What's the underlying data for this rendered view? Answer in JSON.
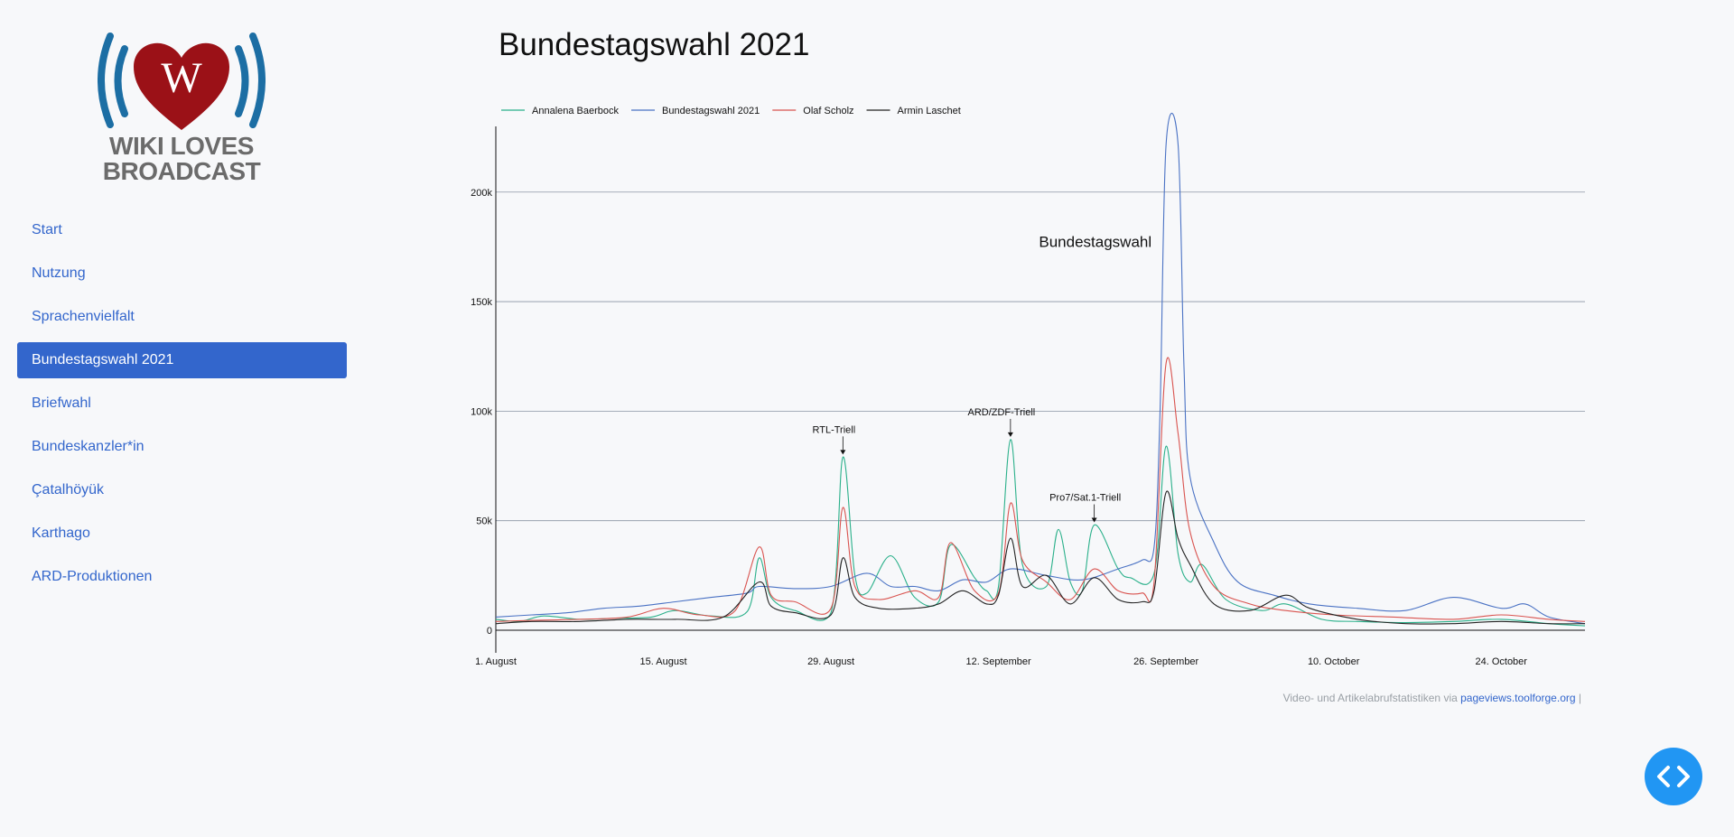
{
  "logo": {
    "line1": "WIKI LOVES",
    "line2": "BROADCAST",
    "letter": "W"
  },
  "nav": {
    "items": [
      {
        "label": "Start",
        "active": false
      },
      {
        "label": "Nutzung",
        "active": false
      },
      {
        "label": "Sprachenvielfalt",
        "active": false
      },
      {
        "label": "Bundestagswahl 2021",
        "active": true
      },
      {
        "label": "Briefwahl",
        "active": false
      },
      {
        "label": "Bundeskanzler*in",
        "active": false
      },
      {
        "label": "Çatalhöyük",
        "active": false
      },
      {
        "label": "Karthago",
        "active": false
      },
      {
        "label": "ARD-Produktionen",
        "active": false
      }
    ]
  },
  "page": {
    "title": "Bundestagswahl 2021"
  },
  "credit": {
    "text": "Video- und Artikelabrufstatistiken via ",
    "link": "pageviews.toolforge.org",
    "suffix": " |"
  },
  "chart_data": {
    "type": "line",
    "title": "",
    "xlabel": "",
    "ylabel": "",
    "xlim": [
      "2021-08-01",
      "2021-10-31"
    ],
    "ylim": [
      0,
      230000
    ],
    "y_ticks": [
      0,
      50000,
      100000,
      150000,
      200000
    ],
    "y_tick_labels": [
      "0",
      "50k",
      "100k",
      "150k",
      "200k"
    ],
    "x_ticks": [
      "2021-08-01",
      "2021-08-15",
      "2021-08-29",
      "2021-09-12",
      "2021-09-26",
      "2021-10-10",
      "2021-10-24"
    ],
    "x_tick_labels": [
      "1. August",
      "15. August",
      "29. August",
      "12. September",
      "26. September",
      "10. October",
      "24. October"
    ],
    "grid": true,
    "legend_position": "top-left",
    "series": [
      {
        "name": "Annalena Baerbock",
        "color": "#2ab08a",
        "points": [
          [
            "2021-08-01",
            5000
          ],
          [
            "2021-08-03",
            4000
          ],
          [
            "2021-08-05",
            6500
          ],
          [
            "2021-08-08",
            5000
          ],
          [
            "2021-08-11",
            5500
          ],
          [
            "2021-08-14",
            6000
          ],
          [
            "2021-08-16",
            9000
          ],
          [
            "2021-08-19",
            6500
          ],
          [
            "2021-08-22",
            8500
          ],
          [
            "2021-08-23",
            33000
          ],
          [
            "2021-08-24",
            15000
          ],
          [
            "2021-08-26",
            9000
          ],
          [
            "2021-08-29",
            8000
          ],
          [
            "2021-08-30",
            79000
          ],
          [
            "2021-08-31",
            25000
          ],
          [
            "2021-09-01",
            17000
          ],
          [
            "2021-09-03",
            34000
          ],
          [
            "2021-09-05",
            15000
          ],
          [
            "2021-09-07",
            13000
          ],
          [
            "2021-09-08",
            39000
          ],
          [
            "2021-09-10",
            24000
          ],
          [
            "2021-09-11",
            18000
          ],
          [
            "2021-09-12",
            20000
          ],
          [
            "2021-09-13",
            87000
          ],
          [
            "2021-09-14",
            30000
          ],
          [
            "2021-09-16",
            20000
          ],
          [
            "2021-09-17",
            46000
          ],
          [
            "2021-09-18",
            22000
          ],
          [
            "2021-09-19",
            18000
          ],
          [
            "2021-09-20",
            48000
          ],
          [
            "2021-09-22",
            28000
          ],
          [
            "2021-09-23",
            24000
          ],
          [
            "2021-09-25",
            26000
          ],
          [
            "2021-09-26",
            84000
          ],
          [
            "2021-09-27",
            35000
          ],
          [
            "2021-09-28",
            22000
          ],
          [
            "2021-09-29",
            30000
          ],
          [
            "2021-10-01",
            14000
          ],
          [
            "2021-10-04",
            9000
          ],
          [
            "2021-10-06",
            12000
          ],
          [
            "2021-10-09",
            5000
          ],
          [
            "2021-10-12",
            4000
          ],
          [
            "2021-10-16",
            3500
          ],
          [
            "2021-10-20",
            4000
          ],
          [
            "2021-10-24",
            5000
          ],
          [
            "2021-10-28",
            3000
          ],
          [
            "2021-10-31",
            2000
          ]
        ]
      },
      {
        "name": "Bundestagswahl 2021",
        "color": "#4a72c4",
        "points": [
          [
            "2021-08-01",
            6000
          ],
          [
            "2021-08-04",
            7000
          ],
          [
            "2021-08-07",
            8000
          ],
          [
            "2021-08-10",
            10000
          ],
          [
            "2021-08-13",
            11000
          ],
          [
            "2021-08-16",
            13000
          ],
          [
            "2021-08-19",
            15000
          ],
          [
            "2021-08-22",
            17000
          ],
          [
            "2021-08-23",
            20000
          ],
          [
            "2021-08-26",
            19000
          ],
          [
            "2021-08-29",
            20000
          ],
          [
            "2021-09-01",
            26000
          ],
          [
            "2021-09-03",
            20000
          ],
          [
            "2021-09-05",
            20000
          ],
          [
            "2021-09-07",
            18000
          ],
          [
            "2021-09-09",
            23000
          ],
          [
            "2021-09-11",
            22000
          ],
          [
            "2021-09-13",
            28000
          ],
          [
            "2021-09-16",
            25000
          ],
          [
            "2021-09-19",
            23000
          ],
          [
            "2021-09-22",
            28000
          ],
          [
            "2021-09-24",
            32000
          ],
          [
            "2021-09-25",
            38000
          ],
          [
            "2021-09-25T12:00",
            100000
          ],
          [
            "2021-09-26",
            222000
          ],
          [
            "2021-09-27",
            222000
          ],
          [
            "2021-09-27T12:00",
            120000
          ],
          [
            "2021-09-28",
            70000
          ],
          [
            "2021-09-30",
            40000
          ],
          [
            "2021-10-02",
            22000
          ],
          [
            "2021-10-05",
            16000
          ],
          [
            "2021-10-08",
            12000
          ],
          [
            "2021-10-12",
            10000
          ],
          [
            "2021-10-16",
            9000
          ],
          [
            "2021-10-20",
            15000
          ],
          [
            "2021-10-24",
            10000
          ],
          [
            "2021-10-26",
            12000
          ],
          [
            "2021-10-28",
            6000
          ],
          [
            "2021-10-31",
            3000
          ]
        ]
      },
      {
        "name": "Olaf Scholz",
        "color": "#d9534f",
        "points": [
          [
            "2021-08-01",
            4000
          ],
          [
            "2021-08-04",
            4500
          ],
          [
            "2021-08-08",
            5000
          ],
          [
            "2021-08-12",
            6000
          ],
          [
            "2021-08-15",
            10000
          ],
          [
            "2021-08-18",
            7000
          ],
          [
            "2021-08-21",
            9000
          ],
          [
            "2021-08-23",
            38000
          ],
          [
            "2021-08-24",
            16000
          ],
          [
            "2021-08-26",
            13000
          ],
          [
            "2021-08-29",
            10000
          ],
          [
            "2021-08-30",
            56000
          ],
          [
            "2021-08-31",
            20000
          ],
          [
            "2021-09-02",
            14000
          ],
          [
            "2021-09-05",
            18000
          ],
          [
            "2021-09-07",
            15000
          ],
          [
            "2021-09-08",
            40000
          ],
          [
            "2021-09-10",
            18000
          ],
          [
            "2021-09-12",
            17000
          ],
          [
            "2021-09-13",
            58000
          ],
          [
            "2021-09-14",
            32000
          ],
          [
            "2021-09-16",
            22000
          ],
          [
            "2021-09-18",
            14000
          ],
          [
            "2021-09-20",
            28000
          ],
          [
            "2021-09-22",
            18000
          ],
          [
            "2021-09-24",
            17000
          ],
          [
            "2021-09-25",
            22000
          ],
          [
            "2021-09-26",
            122000
          ],
          [
            "2021-09-27",
            90000
          ],
          [
            "2021-09-28",
            45000
          ],
          [
            "2021-09-30",
            20000
          ],
          [
            "2021-10-03",
            12000
          ],
          [
            "2021-10-06",
            9000
          ],
          [
            "2021-10-10",
            7000
          ],
          [
            "2021-10-15",
            6000
          ],
          [
            "2021-10-20",
            5000
          ],
          [
            "2021-10-24",
            7000
          ],
          [
            "2021-10-28",
            5000
          ],
          [
            "2021-10-31",
            4000
          ]
        ]
      },
      {
        "name": "Armin Laschet",
        "color": "#222222",
        "points": [
          [
            "2021-08-01",
            3000
          ],
          [
            "2021-08-04",
            4000
          ],
          [
            "2021-08-08",
            4000
          ],
          [
            "2021-08-12",
            5000
          ],
          [
            "2021-08-16",
            5000
          ],
          [
            "2021-08-20",
            6000
          ],
          [
            "2021-08-23",
            22000
          ],
          [
            "2021-08-24",
            11000
          ],
          [
            "2021-08-26",
            8000
          ],
          [
            "2021-08-29",
            7000
          ],
          [
            "2021-08-30",
            33000
          ],
          [
            "2021-08-31",
            15000
          ],
          [
            "2021-09-02",
            10000
          ],
          [
            "2021-09-05",
            10000
          ],
          [
            "2021-09-07",
            12000
          ],
          [
            "2021-09-09",
            18000
          ],
          [
            "2021-09-11",
            12000
          ],
          [
            "2021-09-12",
            16000
          ],
          [
            "2021-09-13",
            42000
          ],
          [
            "2021-09-14",
            20000
          ],
          [
            "2021-09-16",
            25000
          ],
          [
            "2021-09-18",
            12000
          ],
          [
            "2021-09-20",
            24000
          ],
          [
            "2021-09-22",
            14000
          ],
          [
            "2021-09-24",
            13000
          ],
          [
            "2021-09-25",
            18000
          ],
          [
            "2021-09-26",
            63000
          ],
          [
            "2021-09-27",
            42000
          ],
          [
            "2021-09-28",
            30000
          ],
          [
            "2021-09-30",
            12000
          ],
          [
            "2021-10-03",
            9000
          ],
          [
            "2021-10-06",
            16000
          ],
          [
            "2021-10-08",
            10000
          ],
          [
            "2021-10-12",
            5000
          ],
          [
            "2021-10-16",
            3000
          ],
          [
            "2021-10-20",
            3000
          ],
          [
            "2021-10-24",
            4000
          ],
          [
            "2021-10-28",
            3000
          ],
          [
            "2021-10-31",
            3000
          ]
        ]
      }
    ],
    "annotations": [
      {
        "text": "RTL-Triell",
        "x": "2021-08-30",
        "y": 79000
      },
      {
        "text": "ARD/ZDF-Triell",
        "x": "2021-09-13",
        "y": 87000
      },
      {
        "text": "Pro7/Sat.1-Triell",
        "x": "2021-09-20",
        "y": 48000
      },
      {
        "text": "Bundestagswahl",
        "x": "2021-09-26",
        "y": 175000
      }
    ]
  }
}
